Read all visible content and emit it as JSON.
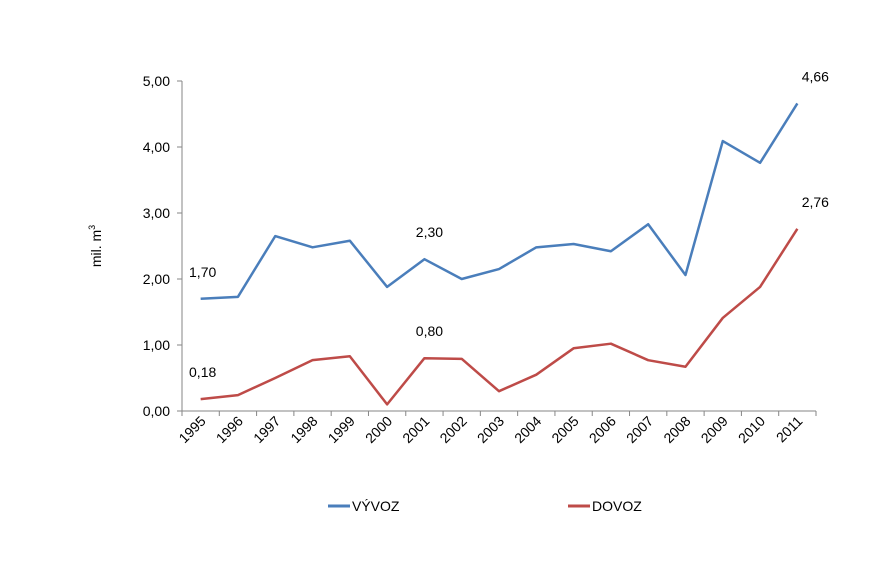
{
  "chart_data": {
    "type": "line",
    "title": "",
    "xlabel": "",
    "ylabel": "mil. m",
    "ylabel_superscript": "3",
    "ylim": [
      0,
      5
    ],
    "yticks": [
      "0,00",
      "1,00",
      "2,00",
      "3,00",
      "4,00",
      "5,00"
    ],
    "grid": false,
    "legend_position": "bottom",
    "categories": [
      "1995",
      "1996",
      "1997",
      "1998",
      "1999",
      "2000",
      "2001",
      "2002",
      "2003",
      "2004",
      "2005",
      "2006",
      "2007",
      "2008",
      "2009",
      "2010",
      "2011"
    ],
    "series": [
      {
        "name": "VÝVOZ",
        "color": "#4a7ebb",
        "values": [
          1.7,
          1.73,
          2.65,
          2.48,
          2.58,
          1.88,
          2.3,
          2.0,
          2.15,
          2.48,
          2.53,
          2.42,
          2.83,
          2.06,
          4.09,
          3.76,
          4.66
        ],
        "labels": [
          {
            "index": 0,
            "text": "1,70"
          },
          {
            "index": 6,
            "text": "2,30"
          },
          {
            "index": 16,
            "text": "4,66"
          }
        ]
      },
      {
        "name": "DOVOZ",
        "color": "#be4b48",
        "values": [
          0.18,
          0.24,
          0.5,
          0.77,
          0.83,
          0.1,
          0.8,
          0.79,
          0.3,
          0.55,
          0.95,
          1.02,
          0.77,
          0.67,
          1.41,
          1.88,
          2.76
        ],
        "labels": [
          {
            "index": 0,
            "text": "0,18"
          },
          {
            "index": 6,
            "text": "0,80"
          },
          {
            "index": 16,
            "text": "2,76"
          }
        ]
      }
    ]
  }
}
